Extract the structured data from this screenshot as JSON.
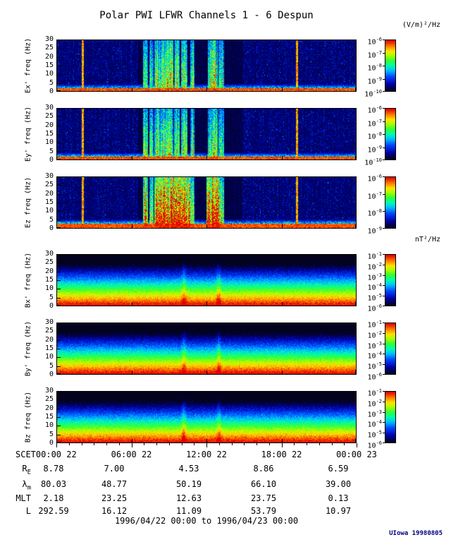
{
  "title": "Polar PWI LFWR Channels 1 - 6 Despun",
  "credit": "UIowa 19980805",
  "colors": {
    "background": "#ffffff",
    "axis": "#000000",
    "credit_text": "#000080"
  },
  "chart_data": {
    "type": "heatmap",
    "title": "Polar PWI LFWR Channels 1 - 6 Despun",
    "description": "Six stacked frequency-time spectrograms (0-30 Hz, 24 hours) from Polar PWI LFWR: three electric field channels (Ex', Ey', Ez) and three magnetic field channels (Bx', By', Bz), each with a rainbow colorbar (red=high power, blue=low).",
    "time_range": "1996/04/22 00:00 to 1996/04/23 00:00",
    "x_axis": {
      "label": "SCET",
      "ticks": [
        "00:00 22",
        "06:00 22",
        "12:00 22",
        "18:00 22",
        "00:00 23"
      ]
    },
    "y_axis": {
      "label_suffix": "freq (Hz)",
      "ylim": [
        0,
        30
      ],
      "ticks": [
        0,
        5,
        10,
        15,
        20,
        25,
        30
      ]
    },
    "panels": [
      {
        "id": "Ex",
        "ylabel": "Ex' freq (Hz)",
        "kind": "E",
        "group_unit": "(V/m)²/Hz",
        "cb_exponents": [
          -6,
          -7,
          -8,
          -9,
          -10
        ]
      },
      {
        "id": "Ey",
        "ylabel": "Ey' freq (Hz)",
        "kind": "E",
        "cb_exponents": [
          -6,
          -7,
          -8,
          -9,
          -10
        ]
      },
      {
        "id": "Ez",
        "ylabel": "Ez freq (Hz)",
        "kind": "E",
        "boost": 1.25,
        "cb_exponents": [
          -6,
          -7,
          -8,
          -9
        ]
      },
      {
        "id": "Bx",
        "ylabel": "Bx' freq (Hz)",
        "kind": "B",
        "group_unit": "nT²/Hz",
        "cb_exponents": [
          -1,
          -2,
          -3,
          -4,
          -5,
          -6
        ]
      },
      {
        "id": "By",
        "ylabel": "By' freq (Hz)",
        "kind": "B",
        "cb_exponents": [
          -1,
          -2,
          -3,
          -4,
          -5,
          -6
        ]
      },
      {
        "id": "Bz",
        "ylabel": "Bz freq (Hz)",
        "kind": "B",
        "cb_exponents": [
          -1,
          -2,
          -3,
          -4,
          -5,
          -6
        ]
      }
    ],
    "events": {
      "bursts": [
        {
          "x": 0.295,
          "w": 0.009,
          "i": 1.0
        },
        {
          "x": 0.315,
          "w": 0.007,
          "i": 0.9
        },
        {
          "x": 0.335,
          "w": 0.011,
          "i": 1.05
        },
        {
          "x": 0.355,
          "w": 0.009,
          "i": 1.0
        },
        {
          "x": 0.375,
          "w": 0.013,
          "i": 1.05
        },
        {
          "x": 0.4,
          "w": 0.009,
          "i": 0.95
        },
        {
          "x": 0.424,
          "w": 0.011,
          "i": 1.05
        },
        {
          "x": 0.452,
          "w": 0.007,
          "i": 0.9
        },
        {
          "x": 0.52,
          "w": 0.016,
          "i": 1.05
        },
        {
          "x": 0.548,
          "w": 0.009,
          "i": 0.95
        }
      ],
      "ez_extra": [
        {
          "x": 0.345,
          "w": 0.02,
          "i": 1.3
        },
        {
          "x": 0.4,
          "w": 0.045,
          "i": 1.35
        },
        {
          "x": 0.52,
          "w": 0.022,
          "i": 1.3
        }
      ],
      "thin_lines": [
        0.085,
        0.802
      ],
      "b_enhancements": [
        0.423,
        0.54
      ],
      "quiet_zone": [
        0.27,
        0.62
      ],
      "e_bottom_band_hz": 1.7,
      "b_spectrum_note": "smooth falloff: red below ~4 Hz grading through yellow, green, cyan to dark blue at 30 Hz"
    },
    "ephemeris": {
      "rows": [
        {
          "base": "R",
          "sub": "E",
          "values": [
            "8.78",
            "7.00",
            "4.53",
            "8.86",
            "6.59"
          ]
        },
        {
          "base": "λ",
          "sub": "m",
          "values": [
            "80.03",
            "48.77",
            "50.19",
            "66.10",
            "39.00"
          ]
        },
        {
          "base": "MLT",
          "sub": "",
          "values": [
            "2.18",
            "23.25",
            "12.63",
            "23.75",
            "0.13"
          ]
        },
        {
          "base": "L",
          "sub": "",
          "values": [
            "292.59",
            "16.12",
            "11.09",
            "53.79",
            "10.97"
          ]
        }
      ]
    }
  }
}
